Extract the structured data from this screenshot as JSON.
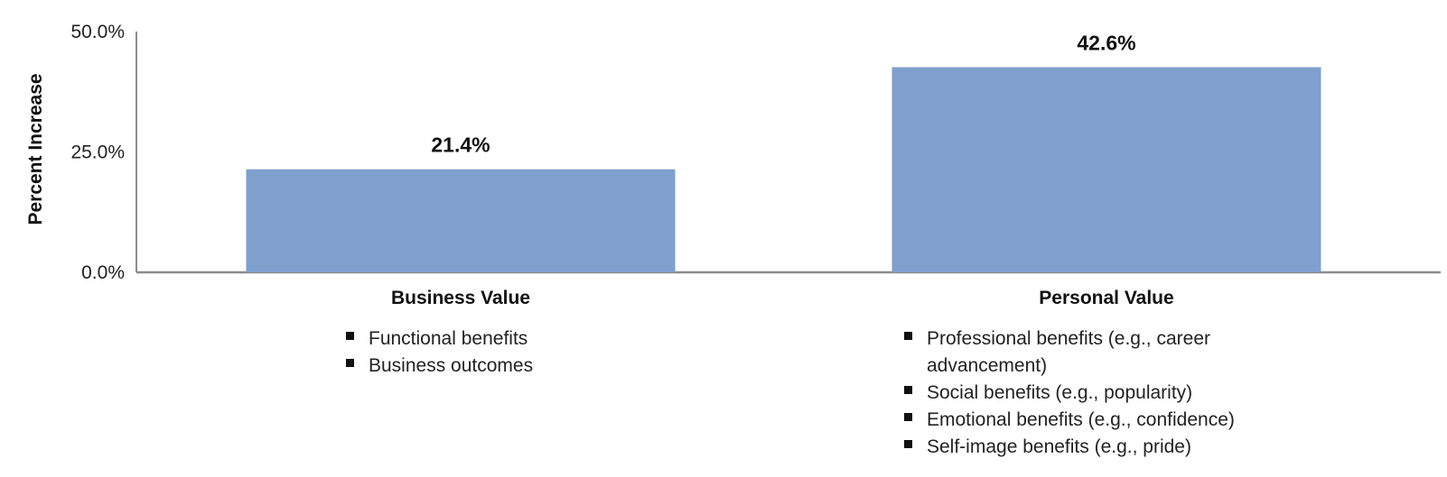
{
  "chart_data": {
    "type": "bar",
    "ylabel": "Percent Increase",
    "ylim": [
      0,
      50
    ],
    "yticks": [
      0,
      25,
      50
    ],
    "ytick_labels": [
      "0.0%",
      "25.0%",
      "50.0%"
    ],
    "categories": [
      "Business Value",
      "Personal Value"
    ],
    "values": [
      21.4,
      42.6
    ],
    "data_labels": [
      "21.4%",
      "42.6%"
    ],
    "bar_color": "#7f9fcd",
    "grid": false,
    "category_details": [
      {
        "lines": [
          {
            "text": "Functional benefits",
            "bullet": true
          },
          {
            "text": "Business outcomes",
            "bullet": true
          }
        ]
      },
      {
        "lines": [
          {
            "text": "Professional benefits (e.g., career",
            "bullet": true
          },
          {
            "text": "advancement)",
            "bullet": false
          },
          {
            "text": "Social benefits (e.g., popularity)",
            "bullet": true
          },
          {
            "text": "Emotional benefits (e.g., confidence)",
            "bullet": true
          },
          {
            "text": "Self-image benefits (e.g., pride)",
            "bullet": true
          }
        ]
      }
    ]
  }
}
